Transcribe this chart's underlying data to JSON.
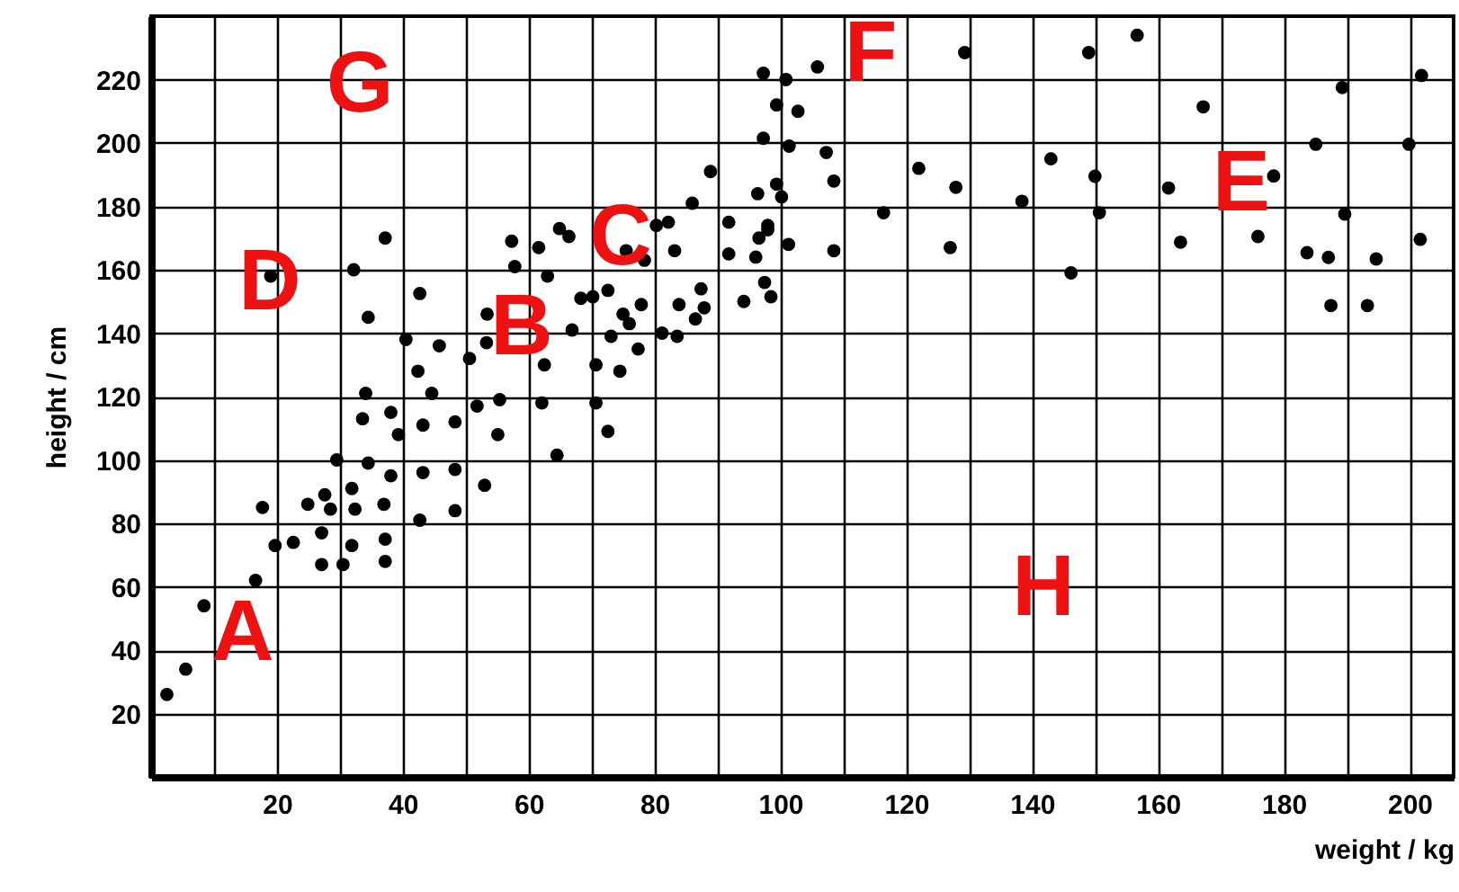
{
  "chart_data": {
    "type": "scatter",
    "xlabel": "weight / kg",
    "ylabel": "height / cm",
    "xlim": [
      0,
      207
    ],
    "ylim": [
      0,
      240
    ],
    "xticks": [
      {
        "value": 10,
        "label": null
      },
      20,
      {
        "value": 30,
        "label": null
      },
      40,
      {
        "value": 50,
        "label": null
      },
      60,
      {
        "value": 70,
        "label": null
      },
      80,
      {
        "value": 90,
        "label": null
      },
      100,
      {
        "value": 110,
        "label": null
      },
      120,
      {
        "value": 130,
        "label": null
      },
      140,
      {
        "value": 150,
        "label": null
      },
      160,
      {
        "value": 170,
        "label": null
      },
      180,
      {
        "value": 190,
        "label": null
      },
      200
    ],
    "yticks": [
      20,
      40,
      60,
      80,
      100,
      120,
      140,
      160,
      180,
      200,
      220
    ],
    "grid": true,
    "marker": "circle",
    "x": [
      2.5,
      5.5,
      8.4,
      16.6,
      19.7,
      22.6,
      17.7,
      24.9,
      27.6,
      28.5,
      31.9,
      32.4,
      27.1,
      27.1,
      30.5,
      31.9,
      37.2,
      37.2,
      37,
      29.5,
      34.5,
      38.1,
      42.7,
      43.2,
      48.3,
      48.3,
      53,
      34.1,
      33.6,
      38.1,
      39.3,
      43.2,
      44.6,
      48.3,
      51.8,
      55.1,
      42.4,
      40.5,
      45.8,
      50.6,
      53.3,
      42.7,
      34.5,
      32.2,
      37.2,
      19,
      88.9,
      99.4,
      100.2,
      96.4,
      86,
      91.8,
      98,
      96.6,
      101.3,
      91.8,
      96.1,
      97.5,
      98.5,
      94.2,
      87.4,
      87.9,
      86.5,
      83.9,
      83.2,
      82.2,
      80.3,
      75.5,
      78.4,
      64.9,
      66.4,
      57.3,
      61.6,
      57.8,
      63,
      72.6,
      68.3,
      70.2,
      77.9,
      75,
      76,
      73.1,
      77.4,
      81.2,
      83.6,
      66.9,
      70.7,
      74.5,
      62.5,
      70.7,
      62.1,
      55.4,
      72.6,
      64.5,
      53.4,
      129.3,
      149,
      156.7,
      105.9,
      100.9,
      97.3,
      99.4,
      102.8,
      97.3,
      101.4,
      107.3,
      108.5,
      122,
      127.9,
      116.4,
      127,
      108.5,
      138.4,
      143,
      150,
      150.7,
      146.2,
      161.7,
      163.6,
      167.2,
      178.4,
      175.9,
      185.1,
      189.3,
      201.9,
      199.9,
      189.7,
      201.7,
      183.7,
      187.1,
      194.7,
      187.5,
      193.3,
      98
    ],
    "values": [
      26,
      34,
      54,
      62,
      73,
      74,
      85,
      86,
      89,
      84.5,
      91,
      84.5,
      77,
      67,
      67,
      73,
      75,
      68,
      86,
      100,
      99,
      95,
      81,
      96,
      97,
      84,
      92,
      121,
      113,
      115,
      108,
      111,
      121,
      112,
      117,
      108,
      128,
      138,
      136,
      132,
      137,
      152.5,
      145,
      160,
      170,
      158,
      191,
      187,
      183,
      184,
      181,
      175,
      174,
      170,
      168,
      165,
      164,
      156,
      151.5,
      150,
      154,
      148,
      144.5,
      149,
      166,
      175,
      174,
      166,
      163,
      173,
      170.5,
      169,
      167,
      161,
      158,
      153.5,
      151,
      151.5,
      149,
      146,
      143,
      139,
      135,
      140,
      139,
      141,
      130,
      128,
      130,
      118,
      118,
      119,
      109,
      101.5,
      146,
      228.5,
      228.5,
      234,
      224,
      220,
      222,
      212,
      210,
      201.5,
      199,
      197,
      188,
      192,
      186,
      178,
      167,
      166,
      181.6,
      195,
      189.5,
      178,
      159,
      185.8,
      168.7,
      211.4,
      189.6,
      170.5,
      199.6,
      217.5,
      221.3,
      199.6,
      177.6,
      169.6,
      165.4,
      163.9,
      163.4,
      148.7,
      148.7,
      172.6
    ],
    "color": "#000000",
    "annotations": [
      "A",
      "B",
      "C",
      "D",
      "E",
      "F",
      "G",
      "H"
    ]
  }
}
